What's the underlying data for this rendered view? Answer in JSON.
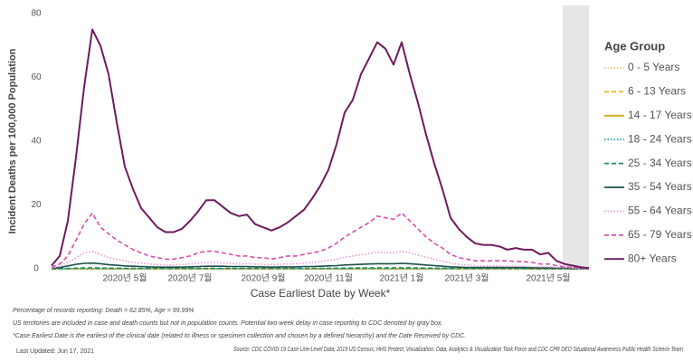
{
  "chart_data": {
    "type": "line",
    "y_label": "Incident Deaths per 100,000 Population",
    "x_label": "Case Earliest Date by Week*",
    "legend_title": "Age Group",
    "legend": "right",
    "categories": [
      null,
      null,
      null,
      null,
      null,
      null,
      null,
      null,
      null,
      "2020년 5월",
      null,
      null,
      null,
      null,
      null,
      null,
      null,
      "2020년 7월",
      null,
      null,
      null,
      null,
      null,
      null,
      null,
      null,
      "2020년 9월",
      null,
      null,
      null,
      null,
      null,
      null,
      null,
      "2020년 11월",
      null,
      null,
      null,
      null,
      null,
      null,
      null,
      null,
      "2021년 1월",
      null,
      null,
      null,
      null,
      null,
      null,
      null,
      "2021년 3월",
      null,
      null,
      null,
      null,
      null,
      null,
      null,
      null,
      null,
      "2021년 5월",
      null,
      null,
      null,
      null,
      null
    ],
    "ylim": [
      0,
      80
    ],
    "yticks": [
      0,
      20,
      40,
      60,
      80
    ],
    "series": [
      {
        "name": "0 - 5 Years",
        "color": "#f3c07e",
        "dash": "dotted",
        "values": [
          0,
          0,
          0,
          0,
          0,
          0,
          0,
          0,
          0,
          0,
          0,
          0,
          0,
          0,
          0,
          0,
          0,
          0,
          0,
          0,
          0,
          0,
          0,
          0,
          0,
          0,
          0,
          0,
          0,
          0,
          0,
          0,
          0,
          0,
          0,
          0,
          0,
          0,
          0,
          0,
          0,
          0,
          0,
          0,
          0,
          0,
          0,
          0,
          0,
          0,
          0,
          0,
          0,
          0,
          0,
          0,
          0,
          0,
          0,
          0,
          0,
          0,
          0,
          0,
          0,
          0,
          0
        ]
      },
      {
        "name": "6 - 13 Years",
        "color": "#e8b32c",
        "dash": "dashed",
        "values": [
          0,
          0,
          0,
          0,
          0,
          0,
          0,
          0,
          0,
          0,
          0,
          0,
          0,
          0,
          0,
          0,
          0,
          0,
          0,
          0,
          0,
          0,
          0,
          0,
          0,
          0,
          0,
          0,
          0,
          0,
          0,
          0,
          0,
          0,
          0,
          0,
          0,
          0,
          0,
          0,
          0,
          0,
          0,
          0,
          0,
          0,
          0,
          0,
          0,
          0,
          0,
          0,
          0,
          0,
          0,
          0,
          0,
          0,
          0,
          0,
          0,
          0,
          0,
          0,
          0,
          0,
          0
        ]
      },
      {
        "name": "14 - 17 Years",
        "color": "#d4a80f",
        "dash": "solid",
        "values": [
          0,
          0,
          0,
          0,
          0,
          0,
          0,
          0,
          0,
          0,
          0,
          0,
          0,
          0,
          0,
          0,
          0,
          0,
          0,
          0,
          0,
          0,
          0,
          0,
          0,
          0,
          0,
          0,
          0,
          0,
          0,
          0,
          0,
          0,
          0,
          0,
          0,
          0,
          0,
          0,
          0,
          0,
          0,
          0,
          0,
          0,
          0,
          0,
          0,
          0,
          0,
          0,
          0,
          0,
          0,
          0,
          0,
          0,
          0,
          0,
          0,
          0,
          0,
          0,
          0,
          0,
          0
        ]
      },
      {
        "name": "18 - 24 Years",
        "color": "#2aa7a0",
        "dash": "dotted",
        "values": [
          0,
          0,
          0.05,
          0.05,
          0.05,
          0.05,
          0.05,
          0.05,
          0.05,
          0.05,
          0.05,
          0.05,
          0.05,
          0.05,
          0.05,
          0.05,
          0.05,
          0.05,
          0.05,
          0.05,
          0.05,
          0.05,
          0.05,
          0.05,
          0.05,
          0.05,
          0.05,
          0.05,
          0.05,
          0.05,
          0.05,
          0.05,
          0.05,
          0.05,
          0.05,
          0.05,
          0.05,
          0.05,
          0.05,
          0.05,
          0.05,
          0.05,
          0.05,
          0.05,
          0.05,
          0.05,
          0.05,
          0.05,
          0.05,
          0.05,
          0.05,
          0.05,
          0.05,
          0.05,
          0.05,
          0.05,
          0.05,
          0.05,
          0.05,
          0.05,
          0.05,
          0.05,
          0,
          0,
          0,
          0,
          0
        ]
      },
      {
        "name": "25 - 34 Years",
        "color": "#1f8a70",
        "dash": "dashed",
        "values": [
          0,
          0.05,
          0.1,
          0.2,
          0.25,
          0.3,
          0.25,
          0.2,
          0.2,
          0.15,
          0.15,
          0.1,
          0.1,
          0.1,
          0.1,
          0.1,
          0.1,
          0.1,
          0.15,
          0.15,
          0.15,
          0.15,
          0.15,
          0.1,
          0.1,
          0.1,
          0.1,
          0.1,
          0.1,
          0.1,
          0.1,
          0.1,
          0.15,
          0.15,
          0.15,
          0.2,
          0.2,
          0.25,
          0.25,
          0.25,
          0.3,
          0.3,
          0.3,
          0.3,
          0.3,
          0.25,
          0.2,
          0.2,
          0.15,
          0.1,
          0.1,
          0.1,
          0.1,
          0.1,
          0.1,
          0.1,
          0.1,
          0.1,
          0.1,
          0.05,
          0.05,
          0.05,
          0.05,
          0,
          0,
          0,
          0
        ]
      },
      {
        "name": "35 - 54 Years",
        "color": "#1c4f4a",
        "dash": "solid",
        "values": [
          0.1,
          0.4,
          0.9,
          1.4,
          1.7,
          1.8,
          1.6,
          1.3,
          1.1,
          0.9,
          0.8,
          0.7,
          0.6,
          0.5,
          0.5,
          0.5,
          0.5,
          0.6,
          0.7,
          0.8,
          0.8,
          0.8,
          0.7,
          0.7,
          0.7,
          0.6,
          0.6,
          0.5,
          0.6,
          0.6,
          0.6,
          0.7,
          0.7,
          0.8,
          0.9,
          1,
          1.2,
          1.3,
          1.4,
          1.5,
          1.6,
          1.6,
          1.6,
          1.7,
          1.6,
          1.4,
          1.2,
          1,
          0.8,
          0.6,
          0.5,
          0.4,
          0.4,
          0.4,
          0.4,
          0.4,
          0.4,
          0.4,
          0.4,
          0.3,
          0.3,
          0.3,
          0.2,
          0.2,
          0.1,
          0.1,
          0.05
        ]
      },
      {
        "name": "55 - 64 Years",
        "color": "#e79ad2",
        "dash": "dotted",
        "values": [
          0.2,
          0.8,
          2,
          3.5,
          5,
          5.5,
          4.5,
          3.5,
          3,
          2.5,
          2,
          1.8,
          1.5,
          1.3,
          1.2,
          1.2,
          1.3,
          1.5,
          1.8,
          2,
          2,
          1.8,
          1.7,
          1.6,
          1.6,
          1.5,
          1.4,
          1.3,
          1.4,
          1.5,
          1.6,
          1.8,
          2,
          2.2,
          2.6,
          3,
          3.6,
          4,
          4.4,
          4.8,
          5.2,
          5,
          5,
          5.5,
          5,
          4.3,
          3.6,
          3,
          2.4,
          1.8,
          1.4,
          1.2,
          1,
          0.9,
          0.9,
          0.9,
          0.8,
          0.8,
          0.8,
          0.7,
          0.6,
          0.6,
          0.4,
          0.3,
          0.2,
          0.1,
          0.05
        ]
      },
      {
        "name": "65 - 79 Years",
        "color": "#d94fae",
        "dash": "dashed",
        "values": [
          0.5,
          1.5,
          4,
          9,
          14,
          17.5,
          13,
          11,
          9,
          7.5,
          6,
          5,
          4,
          3.5,
          3,
          3,
          3.5,
          4,
          5,
          5.5,
          5.5,
          5,
          4.5,
          4,
          4,
          3.5,
          3.5,
          3,
          3.5,
          4,
          4,
          4.5,
          5,
          5.5,
          6.5,
          8,
          10,
          11.5,
          13,
          14.5,
          16.5,
          16,
          15.5,
          17.5,
          15,
          12.5,
          10,
          8,
          6.5,
          4.5,
          3.5,
          3,
          2.5,
          2.5,
          2.5,
          2.5,
          2.5,
          2.3,
          2.2,
          2,
          1.5,
          1.5,
          1,
          0.6,
          0.4,
          0.2,
          0.1
        ]
      },
      {
        "name": "80+ Years",
        "color": "#6d1b5e",
        "dash": "solid",
        "values": [
          1,
          4,
          15,
          35,
          57,
          75,
          70,
          61,
          46,
          32,
          25,
          19,
          16,
          13,
          11.5,
          11.5,
          12.5,
          15,
          18,
          21.5,
          21.5,
          19.5,
          17.5,
          16.5,
          17,
          14,
          13,
          12,
          13,
          14.5,
          16.5,
          18.5,
          22,
          26,
          31,
          39,
          49,
          53,
          61,
          66,
          71,
          69,
          64,
          71,
          61,
          52,
          42,
          33,
          25,
          16,
          12.5,
          10,
          8,
          7.5,
          7.5,
          7,
          6,
          6.5,
          6,
          6,
          4.5,
          5,
          2.5,
          1.5,
          1,
          0.5,
          0.2
        ]
      }
    ]
  },
  "notes": [
    "Percentage of records reporting: Death = 62.85%, Age = 99.99%",
    "US territories are included in case and death counts but not in population counts. Potential two-week delay in case reporting to CDC denoted by gray box.",
    "*Case Earliest Date is the earliest of the clinical date (related to illness or specimen collection and chosen by a defined hierarchy) and the Date Received by CDC."
  ],
  "last_updated": "Last Updated: Jun 17, 2021",
  "source": "Source: CDC COVID-19 Case Line-Level Data, 2019 US Census, HHS Protect; Visualization: Data, Analytics & Visualization Task Force and CDC CPR DEO Situational Awareness Public Health Science Team"
}
